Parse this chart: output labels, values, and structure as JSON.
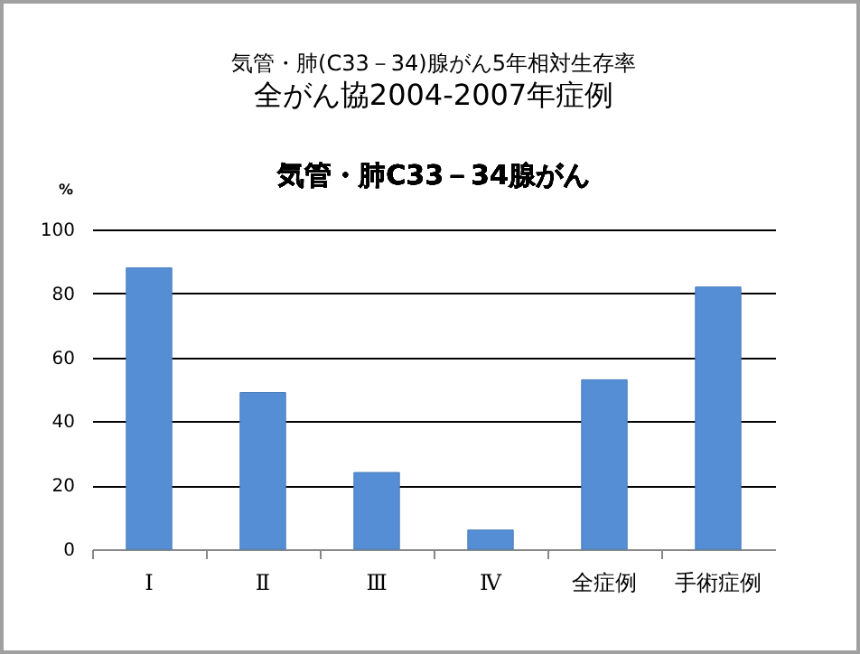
{
  "chart_data": {
    "type": "bar",
    "title": "気管・肺(C33－34)腺がん5年相対生存率",
    "subtitle": "全がん協2004-2007年症例",
    "ylabel": "%",
    "annotations": [
      "気管・肺C33－34腺がん"
    ],
    "categories": [
      "Ⅰ",
      "Ⅱ",
      "Ⅲ",
      "Ⅳ",
      "全症例",
      "手術症例"
    ],
    "values": [
      88,
      49,
      24,
      6,
      53,
      82
    ],
    "color": "#558ed5",
    "ylim": [
      0,
      100
    ],
    "yticks": [
      0,
      20,
      40,
      60,
      80,
      100
    ],
    "grid": true
  }
}
